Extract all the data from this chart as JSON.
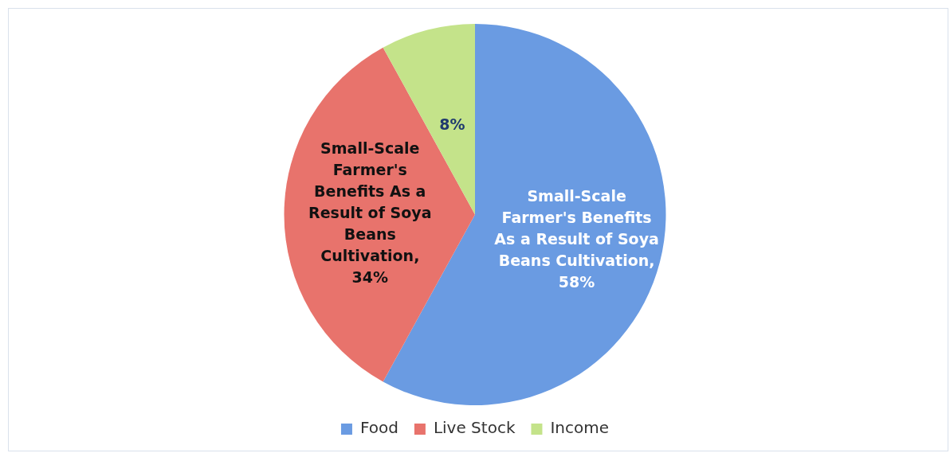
{
  "chart_data": {
    "type": "pie",
    "categories": [
      "Food",
      "Live Stock",
      "Income"
    ],
    "values": [
      58,
      34,
      8
    ],
    "colors": [
      "#6a9be2",
      "#e8736c",
      "#c4e38a"
    ],
    "value_labels": [
      "Small-Scale Farmer's Benefits As a Result of Soya Beans Cultivation, 58%",
      "Small-Scale Farmer's Benefits As a Result of Soya Beans Cultivation, 34%",
      "8%"
    ],
    "legend": "bottom"
  }
}
